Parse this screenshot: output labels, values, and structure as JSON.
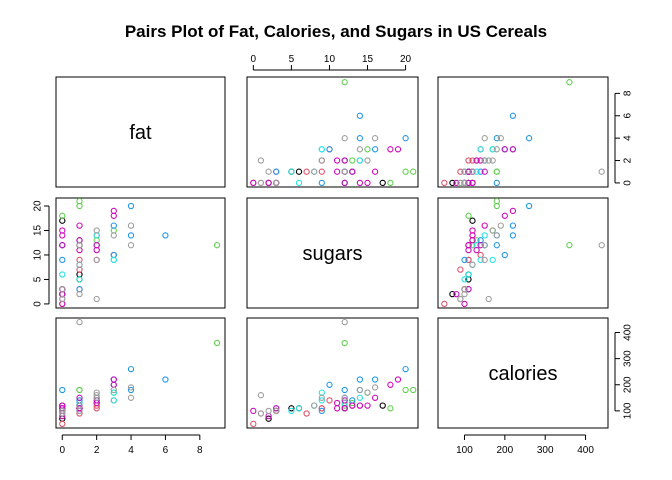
{
  "chart_data": {
    "type": "scatter",
    "title": "Pairs Plot of Fat, Calories, and Sugars in US Cereals",
    "variables": [
      "fat",
      "sugars",
      "calories"
    ],
    "ranges": {
      "fat": [
        0,
        9.1
      ],
      "sugars": [
        0,
        20.8
      ],
      "calories": [
        50,
        440
      ]
    },
    "ticks": {
      "fat": [
        0,
        2,
        4,
        6,
        8
      ],
      "sugars": [
        0,
        5,
        10,
        15,
        20
      ],
      "calories": [
        100,
        200,
        300,
        400
      ]
    },
    "points": [
      {
        "fat": 0,
        "sugars": 2,
        "calories": 70,
        "color": "#000000"
      },
      {
        "fat": 0,
        "sugars": 3,
        "calories": 100,
        "color": "#000000"
      },
      {
        "fat": 1,
        "sugars": 6,
        "calories": 110,
        "color": "#000000"
      },
      {
        "fat": 1,
        "sugars": 5,
        "calories": 110,
        "color": "#000000"
      },
      {
        "fat": 0,
        "sugars": 17,
        "calories": 120,
        "color": "#000000"
      },
      {
        "fat": 0,
        "sugars": 0,
        "calories": 50,
        "color": "#DF536B"
      },
      {
        "fat": 1,
        "sugars": 12,
        "calories": 110,
        "color": "#DF536B"
      },
      {
        "fat": 1,
        "sugars": 13,
        "calories": 120,
        "color": "#DF536B"
      },
      {
        "fat": 0,
        "sugars": 3,
        "calories": 100,
        "color": "#DF536B"
      },
      {
        "fat": 3,
        "sugars": 10,
        "calories": 140,
        "color": "#DF536B"
      },
      {
        "fat": 2,
        "sugars": 9,
        "calories": 110,
        "color": "#DF536B"
      },
      {
        "fat": 1,
        "sugars": 7,
        "calories": 90,
        "color": "#DF536B"
      },
      {
        "fat": 2,
        "sugars": 14,
        "calories": 120,
        "color": "#DF536B"
      },
      {
        "fat": 1,
        "sugars": 9,
        "calories": 110,
        "color": "#DF536B"
      },
      {
        "fat": 1,
        "sugars": 3,
        "calories": 100,
        "color": "#DF536B"
      },
      {
        "fat": 0,
        "sugars": 12,
        "calories": 110,
        "color": "#61D04F"
      },
      {
        "fat": 9,
        "sugars": 12,
        "calories": 360,
        "color": "#61D04F"
      },
      {
        "fat": 1,
        "sugars": 20,
        "calories": 180,
        "color": "#61D04F"
      },
      {
        "fat": 2,
        "sugars": 13,
        "calories": 130,
        "color": "#61D04F"
      },
      {
        "fat": 3,
        "sugars": 15,
        "calories": 170,
        "color": "#61D04F"
      },
      {
        "fat": 1,
        "sugars": 21,
        "calories": 180,
        "color": "#61D04F"
      },
      {
        "fat": 0,
        "sugars": 18,
        "calories": 110,
        "color": "#61D04F"
      },
      {
        "fat": 1,
        "sugars": 12,
        "calories": 120,
        "color": "#61D04F"
      },
      {
        "fat": 1,
        "sugars": 3,
        "calories": 110,
        "color": "#2297E6"
      },
      {
        "fat": 2,
        "sugars": 12,
        "calories": 150,
        "color": "#2297E6"
      },
      {
        "fat": 4,
        "sugars": 14,
        "calories": 180,
        "color": "#2297E6"
      },
      {
        "fat": 1,
        "sugars": 13,
        "calories": 140,
        "color": "#2297E6"
      },
      {
        "fat": 6,
        "sugars": 14,
        "calories": 220,
        "color": "#2297E6"
      },
      {
        "fat": 4,
        "sugars": 20,
        "calories": 260,
        "color": "#2297E6"
      },
      {
        "fat": 3,
        "sugars": 10,
        "calories": 200,
        "color": "#2297E6"
      },
      {
        "fat": 3,
        "sugars": 16,
        "calories": 220,
        "color": "#2297E6"
      },
      {
        "fat": 0,
        "sugars": 12,
        "calories": 180,
        "color": "#2297E6"
      },
      {
        "fat": 0,
        "sugars": 9,
        "calories": 100,
        "color": "#2297E6"
      },
      {
        "fat": 1,
        "sugars": 12,
        "calories": 130,
        "color": "#28E2E5"
      },
      {
        "fat": 3,
        "sugars": 9,
        "calories": 170,
        "color": "#28E2E5"
      },
      {
        "fat": 1,
        "sugars": 5,
        "calories": 100,
        "color": "#28E2E5"
      },
      {
        "fat": 0,
        "sugars": 6,
        "calories": 110,
        "color": "#28E2E5"
      },
      {
        "fat": 2,
        "sugars": 14,
        "calories": 150,
        "color": "#28E2E5"
      },
      {
        "fat": 1,
        "sugars": 8,
        "calories": 120,
        "color": "#28E2E5"
      },
      {
        "fat": 3,
        "sugars": 9,
        "calories": 140,
        "color": "#28E2E5"
      },
      {
        "fat": 0,
        "sugars": 0,
        "calories": 100,
        "color": "#CD0BBC"
      },
      {
        "fat": 0,
        "sugars": 3,
        "calories": 110,
        "color": "#CD0BBC"
      },
      {
        "fat": 1,
        "sugars": 12,
        "calories": 110,
        "color": "#CD0BBC"
      },
      {
        "fat": 0,
        "sugars": 14,
        "calories": 120,
        "color": "#CD0BBC"
      },
      {
        "fat": 1,
        "sugars": 11,
        "calories": 110,
        "color": "#CD0BBC"
      },
      {
        "fat": 0,
        "sugars": 15,
        "calories": 120,
        "color": "#CD0BBC"
      },
      {
        "fat": 3,
        "sugars": 18,
        "calories": 200,
        "color": "#CD0BBC"
      },
      {
        "fat": 0,
        "sugars": 12,
        "calories": 110,
        "color": "#CD0BBC"
      },
      {
        "fat": 1,
        "sugars": 13,
        "calories": 120,
        "color": "#CD0BBC"
      },
      {
        "fat": 1,
        "sugars": 16,
        "calories": 150,
        "color": "#CD0BBC"
      },
      {
        "fat": 2,
        "sugars": 11,
        "calories": 130,
        "color": "#CD0BBC"
      },
      {
        "fat": 0,
        "sugars": 2,
        "calories": 80,
        "color": "#CD0BBC"
      },
      {
        "fat": 2,
        "sugars": 12,
        "calories": 140,
        "color": "#CD0BBC"
      },
      {
        "fat": 3,
        "sugars": 19,
        "calories": 220,
        "color": "#CD0BBC"
      },
      {
        "fat": 0,
        "sugars": 1,
        "calories": 90,
        "color": "#9E9E9E"
      },
      {
        "fat": 1,
        "sugars": 12,
        "calories": 440,
        "color": "#9E9E9E"
      },
      {
        "fat": 4,
        "sugars": 12,
        "calories": 150,
        "color": "#9E9E9E"
      },
      {
        "fat": 2,
        "sugars": 1,
        "calories": 160,
        "color": "#9E9E9E"
      },
      {
        "fat": 3,
        "sugars": 14,
        "calories": 180,
        "color": "#9E9E9E"
      },
      {
        "fat": 1,
        "sugars": 2,
        "calories": 100,
        "color": "#9E9E9E"
      },
      {
        "fat": 2,
        "sugars": 15,
        "calories": 170,
        "color": "#9E9E9E"
      },
      {
        "fat": 4,
        "sugars": 16,
        "calories": 190,
        "color": "#9E9E9E"
      },
      {
        "fat": 0,
        "sugars": 1,
        "calories": 90,
        "color": "#9E9E9E"
      },
      {
        "fat": 1,
        "sugars": 8,
        "calories": 120,
        "color": "#9E9E9E"
      },
      {
        "fat": 0,
        "sugars": 3,
        "calories": 100,
        "color": "#9E9E9E"
      },
      {
        "fat": 2,
        "sugars": 9,
        "calories": 150,
        "color": "#9E9E9E"
      }
    ]
  }
}
